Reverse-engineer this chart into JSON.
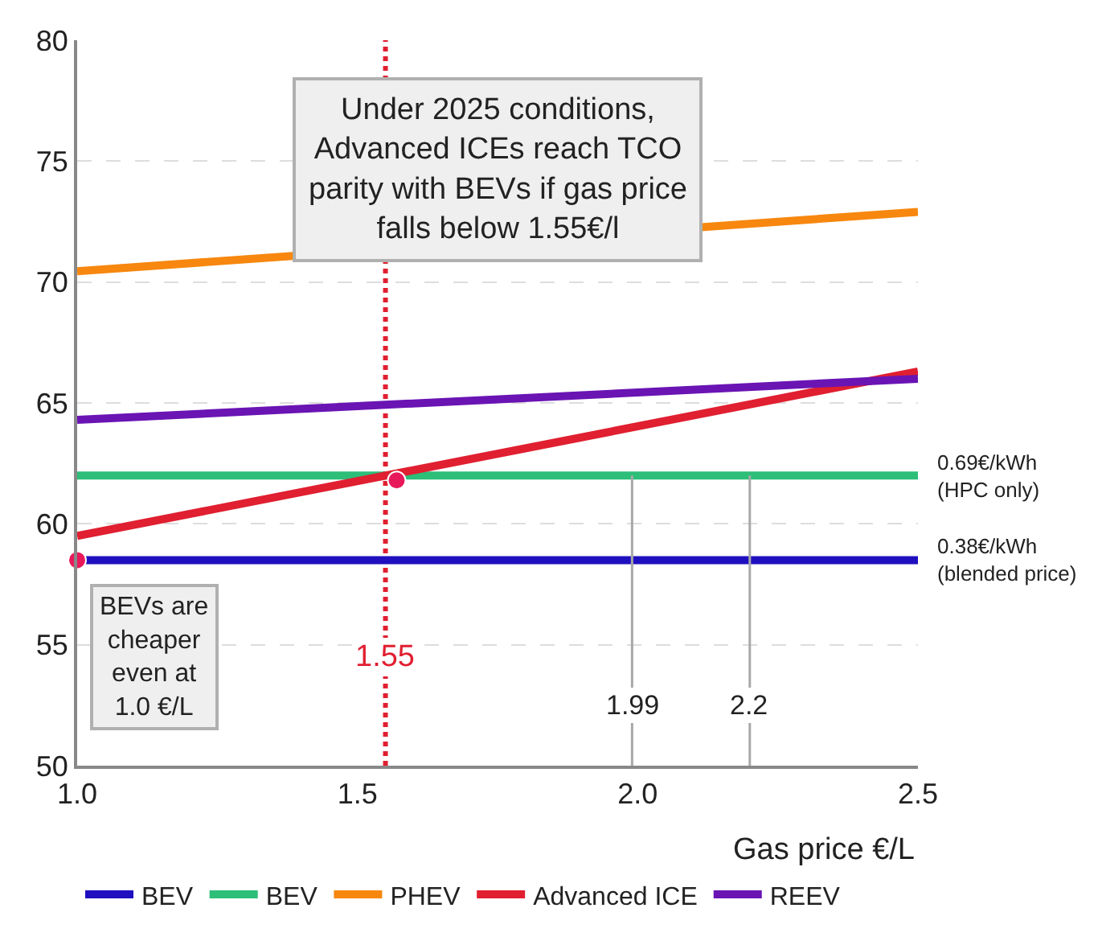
{
  "chart_data": {
    "type": "line",
    "xlabel": "Gas price €/L",
    "xlim": [
      1.0,
      2.5
    ],
    "xticks": [
      {
        "value": 1.0,
        "label": "1.0"
      },
      1.5,
      {
        "value": 2.0,
        "label": "2.0"
      },
      2.5
    ],
    "ylim": [
      50,
      80
    ],
    "yticks": [
      50,
      55,
      60,
      65,
      70,
      75,
      80
    ],
    "grid": "y",
    "legend": "bottom",
    "marker": "none",
    "line_style": "solid",
    "series": [
      {
        "name": "BEV",
        "color": "#1f0fbf",
        "x": [
          1.0,
          2.5
        ],
        "values": [
          58.5,
          58.5
        ]
      },
      {
        "name": "BEV",
        "color": "#2dbe78",
        "x": [
          1.0,
          2.5
        ],
        "values": [
          62.0,
          62.0
        ]
      },
      {
        "name": "PHEV",
        "color": "#f7870f",
        "x": [
          1.0,
          2.5
        ],
        "values": [
          70.45,
          72.9
        ]
      },
      {
        "name": "Advanced ICE",
        "color": "#e01f30",
        "x": [
          1.0,
          2.5
        ],
        "values": [
          59.5,
          66.3
        ]
      },
      {
        "name": "REEV",
        "color": "#6a14b4",
        "x": [
          1.0,
          2.5
        ],
        "values": [
          64.3,
          66.0
        ]
      },
      {
        "type": "scatter",
        "color": "#e8195a",
        "marker": "circle",
        "x": [
          1.0,
          1.57
        ],
        "values": [
          58.5,
          61.8
        ]
      },
      {
        "color": "#a8a8a8",
        "x": [
          1.99,
          1.99
        ],
        "values": [
          50,
          62.0
        ]
      },
      {
        "color": "#a8a8a8",
        "x": [
          2.2,
          2.2
        ],
        "values": [
          50,
          62.0
        ]
      }
    ],
    "ref_lines": [
      {
        "axis": "x",
        "value": 1.55,
        "label": "1.55",
        "color": "#e01f30",
        "line_style": "dotted"
      }
    ],
    "annotations": [
      {
        "text": "0.69€/kWh\n(HPC only)",
        "x": 2.5,
        "y": 62.0
      },
      {
        "text": "0.38€/kWh\n(blended price)",
        "x": 2.5,
        "y": 58.5
      },
      {
        "text": "1.99",
        "x": 1.99,
        "y": 52.5
      },
      {
        "text": "2.2",
        "x": 2.2,
        "y": 52.5
      },
      "BEVs are\ncheaper\neven at\n1.0 €/L",
      "Under 2025 conditions,\nAdvanced ICEs reach TCO\nparity with BEVs if gas price\nfalls below 1.55€/l"
    ]
  }
}
